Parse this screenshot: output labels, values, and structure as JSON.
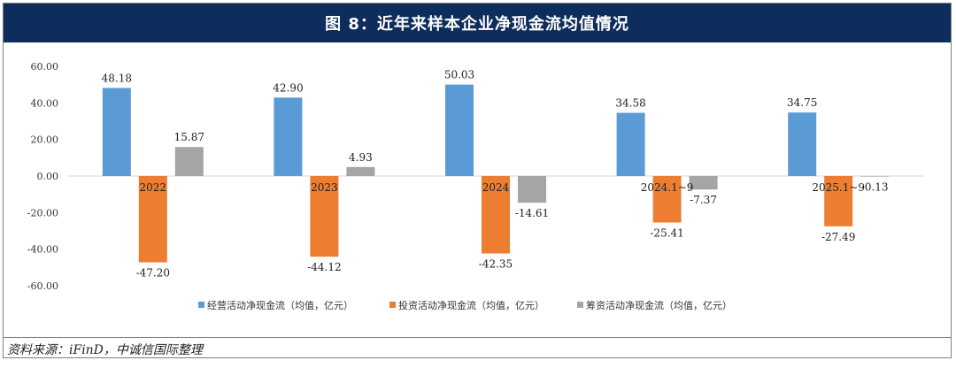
{
  "header": {
    "title": "图 8：近年来样本企业净现金流均值情况"
  },
  "source": {
    "text": "资料来源：iFinD，中诚信国际整理"
  },
  "chart_data": {
    "type": "bar",
    "title": "图 8：近年来样本企业净现金流均值情况",
    "categories": [
      "2022",
      "2023",
      "2024",
      "2024.1~9",
      "2025.1~9"
    ],
    "series": [
      {
        "name": "经营活动净现金流（均值，亿元）",
        "color": "#5b9bd5",
        "values": [
          48.18,
          42.9,
          50.03,
          34.58,
          34.75
        ]
      },
      {
        "name": "投资活动净现金流（均值，亿元）",
        "color": "#ed7d31",
        "values": [
          -47.2,
          -44.12,
          -42.35,
          -25.41,
          -27.49
        ]
      },
      {
        "name": "筹资活动净现金流（均值，亿元）",
        "color": "#a5a5a5",
        "values": [
          15.87,
          4.93,
          -14.61,
          -7.37,
          -0.13
        ]
      }
    ],
    "ylim": [
      -60,
      60
    ],
    "yticks": [
      "60.00",
      "40.00",
      "20.00",
      "0.00",
      "-20.00",
      "-40.00",
      "-60.00"
    ],
    "grid": false,
    "legend": "bottom"
  }
}
